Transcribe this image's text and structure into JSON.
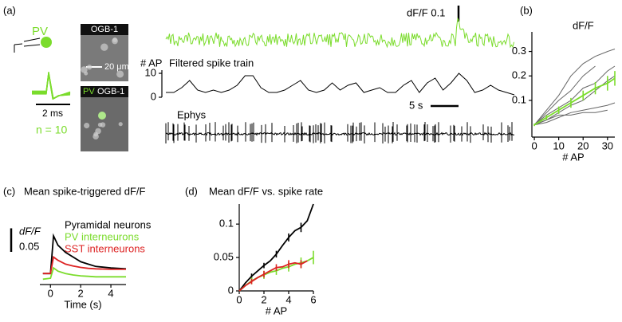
{
  "panel_labels": [
    "(a)",
    "(b)",
    "(c)",
    "(d)"
  ],
  "panel_a": {
    "cell_label": "PV",
    "time_scale_label": "2 ms",
    "n_label": "n = 10",
    "image_top_label": "OGB-1",
    "image_scale_label": "20 μm",
    "image_bottom_labels": [
      "PV",
      "OGB-1"
    ],
    "dff_scale_label": "dF/F 0.1",
    "ap_axis_label": "# AP",
    "trace_title": "Filtered spike train",
    "ylim": [
      0,
      10
    ],
    "yticks": [
      0,
      10
    ],
    "values": [
      2,
      2,
      4,
      7,
      3,
      2,
      3,
      2,
      3,
      5,
      9,
      9,
      4,
      2,
      2,
      3,
      5,
      7,
      3,
      2,
      3,
      6,
      3,
      5,
      6,
      2,
      3,
      4,
      2,
      2,
      5,
      7,
      2,
      6,
      8,
      3,
      6,
      10,
      7,
      2,
      3,
      5,
      3,
      2,
      1
    ],
    "seconds_scale_label": "5 s",
    "ephys_label": "Ephys"
  },
  "chart_data": [
    {
      "type": "line",
      "title": "dF/F",
      "x_label": "# AP",
      "x": [
        0,
        5,
        10,
        15,
        20,
        25,
        30,
        33
      ],
      "xlim": [
        -1,
        33
      ],
      "ylim": [
        -0.05,
        0.38
      ],
      "xticks": [
        0,
        10,
        20,
        30
      ],
      "yticks": [
        0.1,
        0.2,
        0.3
      ],
      "series": [
        {
          "color": "#666666",
          "values": [
            0,
            0.06,
            0.12,
            0.2,
            0.25,
            0.28,
            0.3,
            0.31
          ]
        },
        {
          "color": "#666666",
          "values": [
            0,
            0.05,
            0.1,
            0.14,
            0.2,
            0.24,
            null,
            null
          ]
        },
        {
          "color": "#666666",
          "values": [
            0,
            0.02,
            0.05,
            0.08,
            0.1,
            0.14,
            0.18,
            0.2
          ]
        },
        {
          "color": "#666666",
          "values": [
            0,
            0.01,
            0.03,
            0.05,
            0.06,
            0.07,
            0.08,
            0.09
          ]
        },
        {
          "color": "#666666",
          "values": [
            0,
            0.02,
            0.04,
            0.04,
            0.05,
            0.05,
            0.06,
            null
          ]
        },
        {
          "color": "#666666",
          "values": [
            0,
            0.04,
            0.07,
            0.1,
            0.15,
            0.17,
            0.22,
            0.24
          ]
        },
        {
          "color": "#7bdc2c",
          "values": [
            0,
            0.03,
            0.06,
            0.09,
            0.12,
            0.15,
            0.17,
            0.19
          ],
          "errors": [
            0.005,
            0.01,
            0.015,
            0.02,
            0.02,
            0.025,
            0.03,
            0.03
          ]
        }
      ]
    },
    {
      "type": "line",
      "title": "Mean spike-triggered dF/F",
      "x_label": "Time (s)",
      "x": [
        -0.5,
        0,
        0.2,
        0.5,
        1,
        1.5,
        2,
        2.5,
        3,
        4,
        5
      ],
      "xlim": [
        -0.7,
        5
      ],
      "ylim": [
        -0.02,
        0.09
      ],
      "xticks": [
        0,
        2,
        4
      ],
      "scalebar": {
        "value": 0.05,
        "label": "0.05"
      },
      "scalebar_label": "dF/F",
      "series": [
        {
          "name": "Pyramidal neurons",
          "color": "#000000",
          "values": [
            0,
            0,
            0.08,
            0.06,
            0.045,
            0.035,
            0.025,
            0.02,
            0.015,
            0.012,
            0.01
          ]
        },
        {
          "name": "PV interneurons",
          "color": "#7bdc2c",
          "values": [
            -0.012,
            -0.01,
            0.012,
            0.005,
            0,
            -0.003,
            -0.005,
            -0.006,
            -0.007,
            -0.007,
            -0.007
          ]
        },
        {
          "name": "SST interneurons",
          "color": "#dd2222",
          "values": [
            0,
            0,
            0.035,
            0.028,
            0.02,
            0.016,
            0.013,
            0.011,
            0.01,
            0.009,
            0.009
          ]
        }
      ]
    },
    {
      "type": "line",
      "title": "Mean dF/F vs. spike rate",
      "x_label": "# AP",
      "x": [
        0,
        0.5,
        1,
        1.5,
        2,
        2.5,
        3,
        3.5,
        4,
        4.5,
        5,
        5.5,
        6
      ],
      "xlim": [
        0,
        6
      ],
      "ylim": [
        0,
        0.13
      ],
      "xticks": [
        0,
        2,
        4,
        6
      ],
      "yticks": [
        0,
        0.05,
        0.1
      ],
      "series": [
        {
          "color": "#000000",
          "values": [
            0,
            0.012,
            0.022,
            0.03,
            0.038,
            0.045,
            0.055,
            0.068,
            0.08,
            0.09,
            0.095,
            0.105,
            0.13
          ],
          "errors": [
            null,
            null,
            0.004,
            null,
            0.004,
            null,
            0.005,
            null,
            0.006,
            null,
            0.007,
            null,
            null
          ]
        },
        {
          "color": "#7bdc2c",
          "values": [
            0,
            0.008,
            0.015,
            0.02,
            0.024,
            0.028,
            0.03,
            0.034,
            0.036,
            0.04,
            0.042,
            0.045,
            0.05
          ],
          "errors": [
            null,
            null,
            0.005,
            null,
            0.006,
            null,
            0.006,
            null,
            0.007,
            null,
            0.008,
            null,
            0.01
          ]
        },
        {
          "color": "#dd2222",
          "values": [
            0,
            0.008,
            0.014,
            0.02,
            0.025,
            0.03,
            0.035,
            0.036,
            0.04,
            0.042,
            0.04,
            0.045,
            null
          ],
          "errors": [
            null,
            null,
            0.004,
            null,
            0.005,
            null,
            0.005,
            null,
            0.006,
            null,
            0.006,
            null,
            null
          ]
        }
      ]
    }
  ]
}
